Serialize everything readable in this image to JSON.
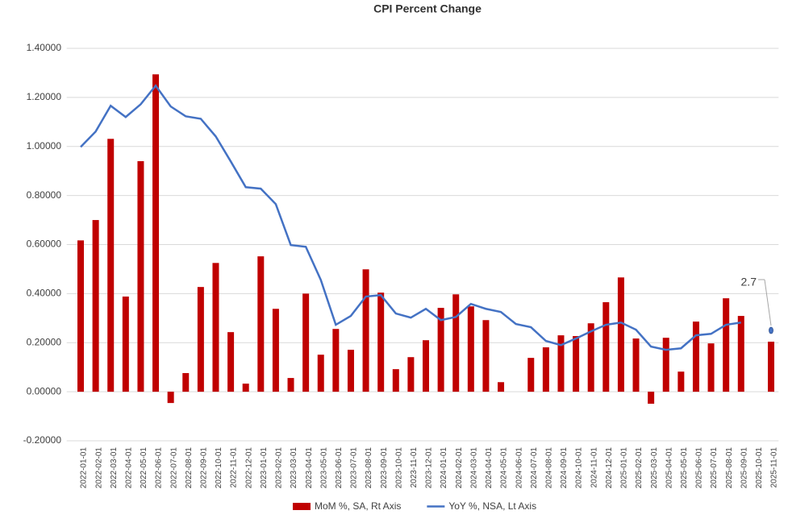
{
  "chart_data": {
    "type": "bar_line",
    "title": "CPI Percent Change",
    "categories": [
      "2022-01-01",
      "2022-02-01",
      "2022-03-01",
      "2022-04-01",
      "2022-05-01",
      "2022-06-01",
      "2022-07-01",
      "2022-08-01",
      "2022-09-01",
      "2022-10-01",
      "2022-11-01",
      "2022-12-01",
      "2023-01-01",
      "2023-02-01",
      "2023-03-01",
      "2023-04-01",
      "2023-05-01",
      "2023-06-01",
      "2023-07-01",
      "2023-08-01",
      "2023-09-01",
      "2023-10-01",
      "2023-11-01",
      "2023-12-01",
      "2024-01-01",
      "2024-02-01",
      "2024-03-01",
      "2024-04-01",
      "2024-05-01",
      "2024-06-01",
      "2024-07-01",
      "2024-08-01",
      "2024-09-01",
      "2024-10-01",
      "2024-11-01",
      "2024-12-01",
      "2025-01-01",
      "2025-02-01",
      "2025-03-01",
      "2025-04-01",
      "2025-05-01",
      "2025-06-01",
      "2025-07-01",
      "2025-08-01",
      "2025-09-01",
      "2025-10-01",
      "2025-11-01"
    ],
    "series": [
      {
        "name": "MoM %, SA, Rt Axis",
        "type": "bar",
        "color": "#c00000",
        "values": [
          0.617,
          0.7,
          1.031,
          0.388,
          0.94,
          1.294,
          -0.046,
          0.076,
          0.427,
          0.525,
          0.243,
          0.033,
          0.552,
          0.338,
          0.056,
          0.4,
          0.151,
          0.256,
          0.171,
          0.499,
          0.404,
          0.092,
          0.141,
          0.21,
          0.342,
          0.397,
          0.348,
          0.292,
          0.039,
          0,
          0.138,
          0.181,
          0.23,
          0.227,
          0.279,
          0.365,
          0.466,
          0.217,
          -0.049,
          0.22,
          0.082,
          0.286,
          0.197,
          0.381,
          0.309,
          null,
          0.204
        ]
      },
      {
        "name": "YoY %, NSA, Lt Axis",
        "type": "line",
        "color": "#4472c4",
        "values": [
          0.998,
          1.061,
          1.166,
          1.12,
          1.172,
          1.248,
          1.163,
          1.123,
          1.113,
          1.041,
          0.939,
          0.834,
          0.828,
          0.765,
          0.598,
          0.591,
          0.456,
          0.273,
          0.309,
          0.388,
          0.394,
          0.319,
          0.302,
          0.338,
          0.292,
          0.305,
          0.358,
          0.338,
          0.325,
          0.276,
          0.263,
          0.207,
          0.19,
          0.217,
          0.246,
          0.273,
          0.282,
          0.253,
          0.184,
          0.171,
          0.177,
          0.23,
          0.236,
          0.273,
          0.282,
          null,
          0.25
        ]
      }
    ],
    "annotations": [
      {
        "text": "2.7",
        "category_index": 46
      }
    ],
    "ylim": [
      -0.2,
      1.4
    ],
    "yticks": [
      {
        "value": -0.2,
        "label": "-0.20000"
      },
      {
        "value": 0,
        "label": "0.00000"
      },
      {
        "value": 0.2,
        "label": "0.20000"
      },
      {
        "value": 0.4,
        "label": "0.40000"
      },
      {
        "value": 0.6,
        "label": "0.60000"
      },
      {
        "value": 0.8,
        "label": "0.80000"
      },
      {
        "value": 1.0,
        "label": "1.00000"
      },
      {
        "value": 1.2,
        "label": "1.20000"
      },
      {
        "value": 1.4,
        "label": "1.40000"
      }
    ],
    "grid": true,
    "legend": "bottom"
  }
}
